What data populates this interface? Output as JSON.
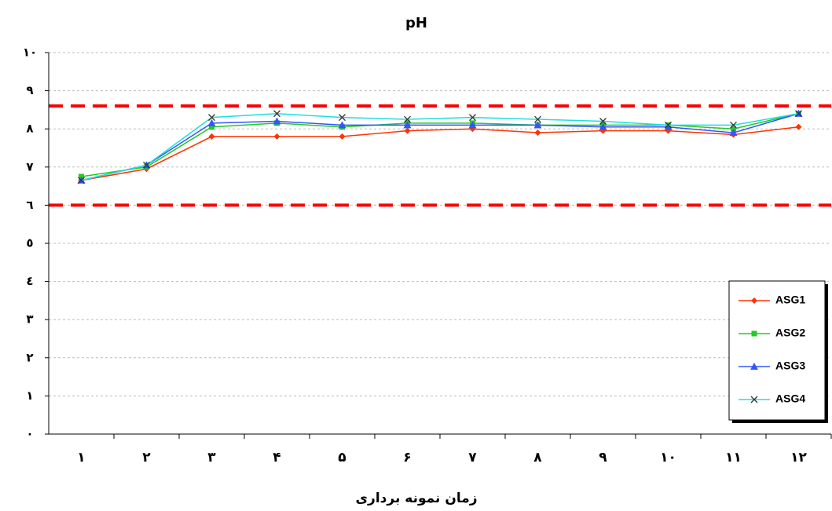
{
  "chart_data": {
    "type": "line",
    "title": "pH",
    "x_label": "زمان نمونه برداری",
    "categories": [
      "۱",
      "۲",
      "۳",
      "۴",
      "۵",
      "۶",
      "۷",
      "۸",
      "۹",
      "۱۰",
      "۱۱",
      "۱۲"
    ],
    "ylim": [
      0,
      10
    ],
    "yticks": [
      {
        "value": 0,
        "label": "۰"
      },
      {
        "value": 1,
        "label": "۱"
      },
      {
        "value": 2,
        "label": "۲"
      },
      {
        "value": 3,
        "label": "۳"
      },
      {
        "value": 4,
        "label": "٤"
      },
      {
        "value": 5,
        "label": "٥"
      },
      {
        "value": 6,
        "label": "٦"
      },
      {
        "value": 7,
        "label": "۷"
      },
      {
        "value": 8,
        "label": "۸"
      },
      {
        "value": 9,
        "label": "۹"
      },
      {
        "value": 10,
        "label": "۱۰"
      }
    ],
    "grid": true,
    "reference_lines": [
      {
        "value": 8.6,
        "color": "#ff0000"
      },
      {
        "value": 6.0,
        "color": "#ff0000"
      }
    ],
    "legend_position": "lower right",
    "series": [
      {
        "name": "ASG1",
        "color": "#ff3300",
        "marker": "diamond",
        "values": [
          6.65,
          6.95,
          7.8,
          7.8,
          7.8,
          7.95,
          8.0,
          7.9,
          7.95,
          7.95,
          7.85,
          8.05
        ]
      },
      {
        "name": "ASG2",
        "color": "#22cc22",
        "marker": "square",
        "values": [
          6.75,
          7.0,
          8.05,
          8.15,
          8.05,
          8.15,
          8.15,
          8.1,
          8.1,
          8.1,
          8.0,
          8.4
        ]
      },
      {
        "name": "ASG3",
        "color": "#3355ff",
        "marker": "triangle",
        "values": [
          6.65,
          7.05,
          8.15,
          8.2,
          8.1,
          8.1,
          8.1,
          8.1,
          8.05,
          8.05,
          7.9,
          8.4
        ]
      },
      {
        "name": "ASG4",
        "color": "#22dddd",
        "marker": "x",
        "values": [
          6.65,
          7.05,
          8.3,
          8.4,
          8.3,
          8.25,
          8.3,
          8.25,
          8.2,
          8.1,
          8.1,
          8.4
        ]
      }
    ]
  }
}
